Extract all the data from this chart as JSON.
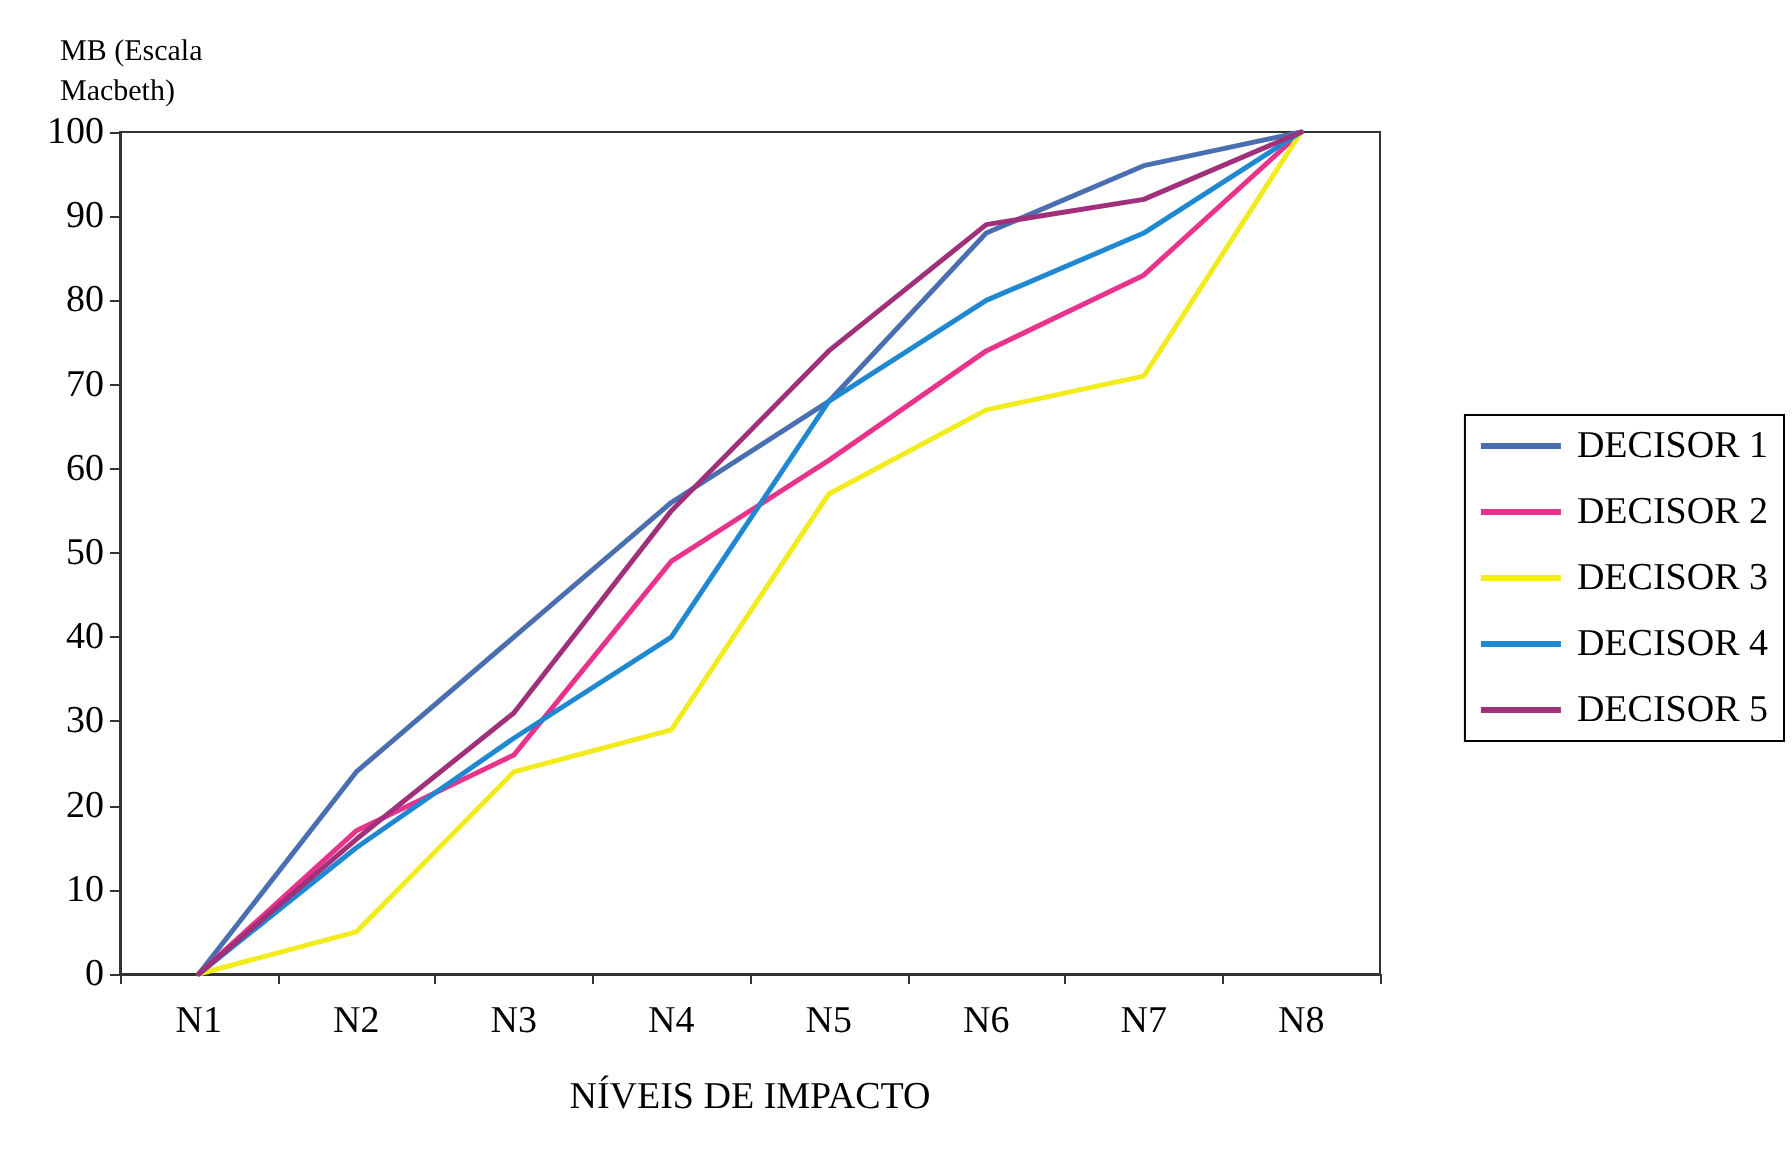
{
  "chart_data": {
    "type": "line",
    "xlabel": "NÍVEIS DE IMPACTO",
    "ylabel": "MB (Escala\nMacbeth)",
    "categories": [
      "N1",
      "N2",
      "N3",
      "N4",
      "N5",
      "N6",
      "N7",
      "N8"
    ],
    "series": [
      {
        "name": "DECISOR 1",
        "color": "#4a6fb0",
        "values": [
          0,
          24,
          40,
          56,
          68,
          88,
          96,
          100
        ]
      },
      {
        "name": "DECISOR 2",
        "color": "#e8338a",
        "values": [
          0,
          17,
          26,
          49,
          61,
          74,
          83,
          100
        ]
      },
      {
        "name": "DECISOR 3",
        "color": "#f2ec1c",
        "values": [
          0,
          5,
          24,
          29,
          57,
          67,
          71,
          100
        ]
      },
      {
        "name": "DECISOR 4",
        "color": "#1e88d0",
        "values": [
          0,
          15,
          28,
          40,
          68,
          80,
          88,
          100
        ]
      },
      {
        "name": "DECISOR 5",
        "color": "#a0307a",
        "values": [
          0,
          16,
          31,
          55,
          74,
          89,
          92,
          100
        ]
      }
    ],
    "ylim": [
      0,
      100
    ],
    "yticks": [
      0,
      10,
      20,
      30,
      40,
      50,
      60,
      70,
      80,
      90,
      100
    ],
    "grid": false,
    "legend": "right",
    "marker": "none",
    "line_style": "solid"
  }
}
